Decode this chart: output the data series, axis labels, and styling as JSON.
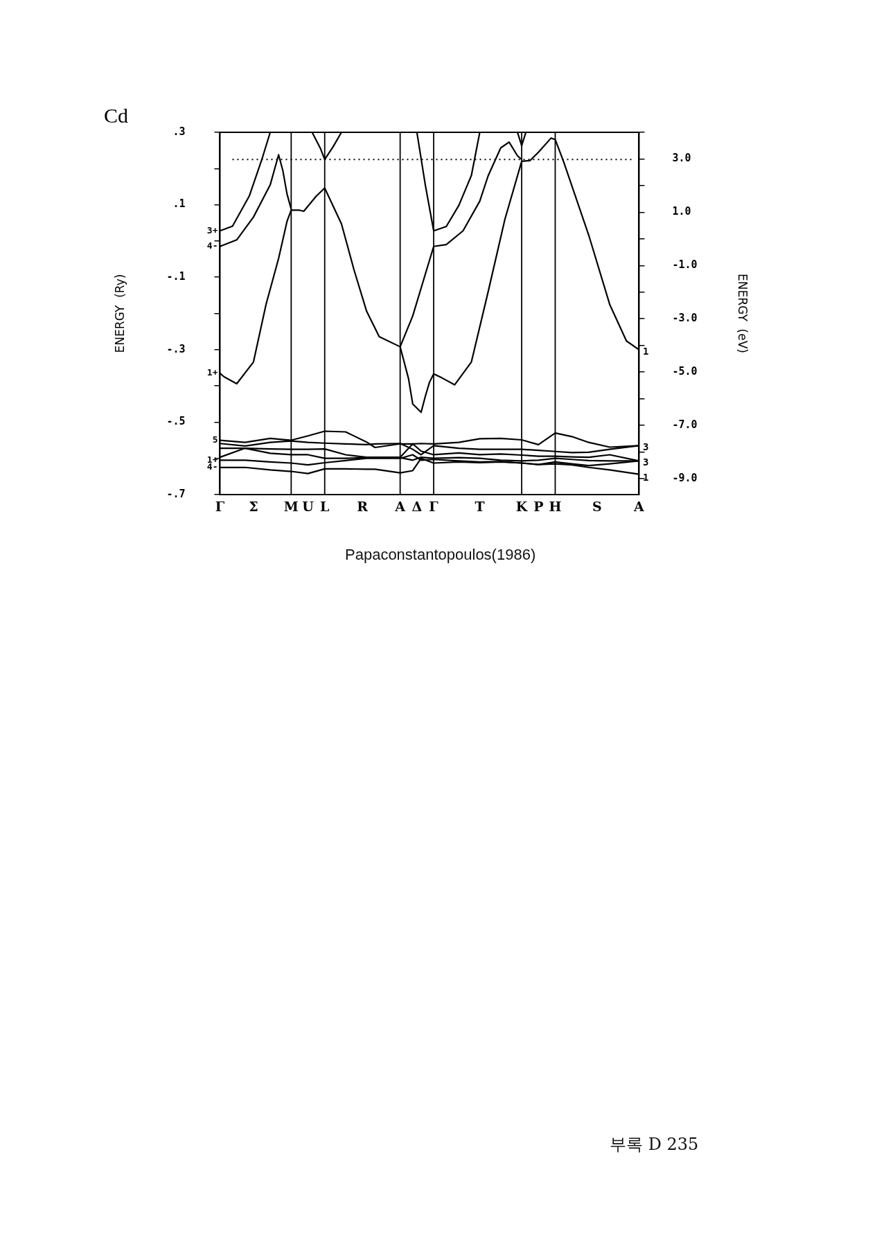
{
  "chart_data": {
    "type": "line",
    "title": "Cd",
    "ylabel": "ENERGY  (Ry)",
    "y2label": "ENERGY  (eV)",
    "categories": [
      "Γ",
      null,
      null,
      null,
      null,
      null,
      null,
      null,
      "Σ",
      null,
      null,
      null,
      null,
      null,
      null,
      null,
      null,
      "M",
      null,
      null,
      null,
      "U",
      null,
      null,
      null,
      "L",
      null,
      null,
      null,
      null,
      null,
      null,
      null,
      null,
      "R",
      null,
      null,
      null,
      null,
      null,
      null,
      null,
      null,
      "A",
      null,
      null,
      null,
      "Δ",
      null,
      null,
      null,
      "Γ",
      null,
      null,
      null,
      null,
      null,
      null,
      null,
      null,
      null,
      null,
      "T",
      null,
      null,
      null,
      null,
      null,
      null,
      null,
      null,
      null,
      "K",
      null,
      null,
      null,
      "P",
      null,
      null,
      null,
      "H",
      null,
      null,
      null,
      null,
      null,
      null,
      null,
      null,
      null,
      "S",
      null,
      null,
      null,
      null,
      null,
      null,
      null,
      null,
      null,
      "A"
    ],
    "ylim": [
      -0.7,
      0.3
    ],
    "yticks": [
      {
        "value": 0.3,
        "label": ".3"
      },
      {
        "value": 0.2,
        "label": null
      },
      {
        "value": 0.1,
        "label": ".1"
      },
      {
        "value": 0,
        "label": null
      },
      {
        "value": -0.1,
        "label": "-.1"
      },
      {
        "value": -0.2,
        "label": null
      },
      {
        "value": -0.3,
        "label": "-.3"
      },
      {
        "value": -0.4,
        "label": null
      },
      {
        "value": -0.5,
        "label": "-.5"
      },
      {
        "value": -0.6,
        "label": null
      },
      {
        "value": -0.7,
        "label": "-.7"
      }
    ],
    "y2lim": [
      -9.6,
      4.0
    ],
    "y2ticks": [
      {
        "value": 4,
        "label": null
      },
      {
        "value": 3,
        "label": "3.0"
      },
      {
        "value": 2,
        "label": null
      },
      {
        "value": 1,
        "label": "1.0"
      },
      {
        "value": 0,
        "label": null
      },
      {
        "value": -1,
        "label": "-1.0"
      },
      {
        "value": -2,
        "label": null
      },
      {
        "value": -3,
        "label": "-3.0"
      },
      {
        "value": -4,
        "label": null
      },
      {
        "value": -5,
        "label": "-5.0"
      },
      {
        "value": -6,
        "label": null
      },
      {
        "value": -7,
        "label": "-7.0"
      },
      {
        "value": -8,
        "label": null
      },
      {
        "value": -9,
        "label": "-9.0"
      }
    ],
    "grid": false,
    "legend": false,
    "marker": "none",
    "line_style": "solid",
    "series": [
      {
        "color": "#000000",
        "values": [
          -0.365,
          -0.375,
          null,
          null,
          -0.394,
          null,
          null,
          null,
          -0.334,
          null,
          null,
          -0.175,
          null,
          null,
          -0.048,
          null,
          0.054,
          0.085,
          null,
          0.085,
          0.082,
          null,
          null,
          0.124,
          null,
          0.146,
          null,
          null,
          null,
          0.047,
          null,
          null,
          -0.08,
          null,
          null,
          -0.194,
          null,
          null,
          -0.264,
          null,
          null,
          null,
          null,
          -0.292,
          null,
          null,
          null,
          null,
          null,
          null,
          null,
          null,
          null,
          null,
          null,
          null,
          null,
          null,
          null,
          null,
          null,
          null,
          null,
          null,
          null,
          null,
          null,
          null,
          null,
          null,
          null,
          null,
          null,
          null,
          null,
          null,
          null,
          null,
          null,
          null,
          null,
          null,
          null,
          null,
          null,
          null,
          null,
          null,
          null,
          null,
          null,
          null,
          null,
          null,
          null,
          null,
          null,
          null,
          null,
          null,
          null
        ]
      },
      {
        "color": "#000000",
        "values": [
          -0.015,
          null,
          null,
          null,
          0.003,
          null,
          null,
          null,
          0.066,
          null,
          null,
          null,
          0.155,
          null,
          0.238,
          0.195,
          0.13,
          0.088,
          null,
          null,
          null,
          null,
          null,
          null,
          null,
          null,
          null,
          null,
          null,
          null,
          null,
          null,
          null,
          null,
          null,
          null,
          null,
          null,
          null,
          null,
          null,
          null,
          null,
          null,
          null,
          null,
          null,
          null,
          null,
          null,
          null,
          null,
          null,
          null,
          null,
          null,
          null,
          null,
          null,
          null,
          null,
          null,
          null,
          null,
          null,
          null,
          null,
          null,
          null,
          null,
          null,
          null,
          null,
          null,
          null,
          null,
          null,
          null,
          null,
          null,
          null,
          null,
          null,
          null,
          null,
          null,
          null,
          null,
          null,
          null,
          null,
          null,
          null,
          null,
          null,
          null,
          null,
          null,
          null,
          null,
          null
        ]
      },
      {
        "color": "#000000",
        "values": [
          0.028,
          null,
          null,
          0.041,
          null,
          null,
          null,
          0.124,
          null,
          null,
          0.225,
          null,
          0.3,
          null,
          null,
          null,
          null,
          null,
          null,
          null,
          null,
          null,
          null,
          null,
          null,
          null,
          null,
          null,
          null,
          null,
          null,
          null,
          null,
          null,
          null,
          null,
          null,
          null,
          null,
          null,
          null,
          null,
          null,
          null,
          null,
          null,
          null,
          null,
          null,
          null,
          null,
          null,
          null,
          null,
          null,
          null,
          null,
          null,
          null,
          null,
          null,
          null,
          null,
          null,
          null,
          null,
          null,
          null,
          null,
          null,
          null,
          null,
          null,
          null,
          null,
          null,
          null,
          null,
          null,
          null,
          null,
          null,
          null,
          null,
          null,
          null,
          null,
          null,
          null,
          null,
          null,
          null,
          null,
          null,
          null,
          null,
          null,
          null,
          null,
          null,
          null
        ]
      },
      {
        "color": "#000000",
        "values": [
          null,
          null,
          null,
          null,
          null,
          null,
          null,
          null,
          null,
          null,
          null,
          null,
          null,
          null,
          null,
          null,
          null,
          null,
          null,
          null,
          null,
          null,
          0.3,
          null,
          0.255,
          0.225,
          null,
          0.26,
          null,
          0.3,
          null,
          null,
          null,
          null,
          null,
          null,
          null,
          null,
          null,
          null,
          null,
          null,
          null,
          null,
          null,
          null,
          null,
          null,
          null,
          null,
          null,
          null,
          null,
          null,
          null,
          null,
          null,
          null,
          null,
          null,
          null,
          null,
          null,
          null,
          null,
          null,
          null,
          null,
          null,
          null,
          null,
          null,
          null,
          null,
          null,
          null,
          null,
          null,
          null,
          null,
          null,
          null,
          null,
          null,
          null,
          null,
          null,
          null,
          null,
          null,
          null,
          null,
          null,
          null,
          null,
          null,
          null,
          null,
          null,
          null,
          null
        ]
      },
      {
        "color": "#000000",
        "values": [
          null,
          null,
          null,
          null,
          null,
          null,
          null,
          null,
          null,
          null,
          null,
          null,
          null,
          null,
          null,
          null,
          null,
          null,
          null,
          null,
          null,
          null,
          null,
          null,
          null,
          null,
          null,
          null,
          null,
          null,
          null,
          null,
          null,
          null,
          null,
          null,
          null,
          null,
          null,
          null,
          null,
          null,
          null,
          -0.292,
          null,
          null,
          -0.207,
          null,
          null,
          null,
          null,
          -0.015,
          null,
          null,
          null,
          null,
          null,
          null,
          null,
          null,
          null,
          null,
          null,
          null,
          null,
          null,
          null,
          null,
          null,
          null,
          null,
          null,
          null,
          null,
          null,
          null,
          null,
          null,
          null,
          null,
          null,
          null,
          null,
          null,
          null,
          null,
          null,
          null,
          null,
          null,
          null,
          null,
          null,
          null,
          null,
          null,
          null,
          null,
          null,
          null,
          null
        ]
      },
      {
        "color": "#000000",
        "values": [
          null,
          null,
          null,
          null,
          null,
          null,
          null,
          null,
          null,
          null,
          null,
          null,
          null,
          null,
          null,
          null,
          null,
          null,
          null,
          null,
          null,
          null,
          null,
          null,
          null,
          null,
          null,
          null,
          null,
          null,
          null,
          null,
          null,
          null,
          null,
          null,
          null,
          null,
          null,
          null,
          null,
          null,
          null,
          -0.292,
          null,
          -0.38,
          -0.45,
          null,
          -0.473,
          -0.429,
          -0.39,
          -0.367,
          null,
          -0.378,
          null,
          null,
          -0.397,
          null,
          null,
          null,
          -0.334,
          null,
          null,
          null,
          -0.14,
          null,
          null,
          null,
          0.06,
          null,
          null,
          null,
          0.22,
          null,
          0.222,
          null,
          0.245,
          null,
          null,
          0.284,
          0.28,
          null,
          0.219,
          null,
          null,
          null,
          null,
          null,
          0.016,
          null,
          null,
          null,
          null,
          -0.175,
          null,
          null,
          null,
          -0.276,
          null,
          null,
          -0.3
        ]
      },
      {
        "color": "#000000",
        "values": [
          null,
          null,
          null,
          null,
          null,
          null,
          null,
          null,
          null,
          null,
          null,
          null,
          null,
          null,
          null,
          null,
          null,
          null,
          null,
          null,
          null,
          null,
          null,
          null,
          null,
          null,
          null,
          null,
          null,
          null,
          null,
          null,
          null,
          null,
          null,
          null,
          null,
          null,
          null,
          null,
          null,
          null,
          null,
          null,
          null,
          null,
          null,
          0.3,
          null,
          0.155,
          null,
          0.028,
          null,
          null,
          0.04,
          null,
          null,
          0.098,
          null,
          null,
          0.181,
          null,
          0.3,
          null,
          null,
          null,
          null,
          null,
          null,
          null,
          null,
          null,
          null,
          null,
          null,
          null,
          null,
          null,
          null,
          null,
          null,
          null,
          null,
          null,
          null,
          null,
          null,
          null,
          null,
          null,
          null,
          null,
          null,
          null,
          null,
          null,
          null,
          null,
          null,
          null,
          null
        ]
      },
      {
        "color": "#000000",
        "values": [
          null,
          null,
          null,
          null,
          null,
          null,
          null,
          null,
          null,
          null,
          null,
          null,
          null,
          null,
          null,
          null,
          null,
          null,
          null,
          null,
          null,
          null,
          null,
          null,
          null,
          null,
          null,
          null,
          null,
          null,
          null,
          null,
          null,
          null,
          null,
          null,
          null,
          null,
          null,
          null,
          null,
          null,
          null,
          null,
          null,
          null,
          null,
          null,
          null,
          null,
          null,
          -0.015,
          null,
          null,
          -0.01,
          null,
          null,
          null,
          0.028,
          null,
          null,
          null,
          0.11,
          null,
          0.18,
          null,
          null,
          0.257,
          null,
          0.273,
          null,
          0.235,
          0.225,
          null,
          null,
          null,
          null,
          null,
          null,
          null,
          null,
          null,
          null,
          null,
          null,
          null,
          null,
          null,
          null,
          null,
          null,
          null,
          null,
          null,
          null,
          null,
          null,
          null,
          null,
          null,
          null
        ]
      },
      {
        "color": "#000000",
        "values": [
          null,
          null,
          null,
          null,
          null,
          null,
          null,
          null,
          null,
          null,
          null,
          null,
          null,
          null,
          null,
          null,
          null,
          null,
          null,
          null,
          null,
          null,
          null,
          null,
          null,
          null,
          null,
          null,
          null,
          null,
          null,
          null,
          null,
          null,
          null,
          null,
          null,
          null,
          null,
          null,
          null,
          null,
          null,
          null,
          null,
          null,
          null,
          null,
          null,
          null,
          null,
          null,
          null,
          null,
          null,
          null,
          null,
          null,
          null,
          null,
          null,
          null,
          null,
          null,
          null,
          null,
          null,
          null,
          null,
          null,
          null,
          0.3,
          0.263,
          0.3,
          null,
          null,
          null,
          null,
          null,
          null,
          null,
          null,
          null,
          null,
          null,
          null,
          null,
          null,
          null,
          null,
          null,
          null,
          null,
          null,
          null,
          null,
          null,
          null,
          null,
          null,
          null
        ]
      },
      {
        "color": "#000000",
        "values": [
          -0.55,
          null,
          null,
          null,
          null,
          null,
          -0.556,
          null,
          null,
          null,
          null,
          null,
          -0.545,
          null,
          null,
          null,
          null,
          -0.55,
          null,
          null,
          null,
          -0.538,
          null,
          null,
          null,
          -0.525,
          null,
          null,
          null,
          null,
          -0.527,
          null,
          null,
          null,
          null,
          -0.555,
          null,
          -0.57,
          null,
          null,
          null,
          null,
          null,
          -0.56,
          null,
          null,
          -0.56,
          null,
          -0.559,
          null,
          null,
          -0.56,
          null,
          null,
          null,
          null,
          null,
          -0.556,
          null,
          null,
          null,
          null,
          -0.546,
          null,
          null,
          null,
          null,
          -0.545,
          null,
          null,
          null,
          null,
          -0.549,
          null,
          null,
          null,
          -0.562,
          null,
          null,
          null,
          -0.53,
          null,
          null,
          null,
          -0.54,
          null,
          null,
          null,
          -0.556,
          null,
          null,
          null,
          null,
          -0.569,
          null,
          null,
          null,
          null,
          null,
          null,
          -0.565
        ]
      },
      {
        "color": "#000000",
        "values": [
          -0.559,
          null,
          null,
          null,
          null,
          null,
          -0.566,
          null,
          null,
          null,
          null,
          null,
          -0.556,
          null,
          null,
          null,
          null,
          -0.552,
          null,
          null,
          null,
          -0.556,
          null,
          null,
          null,
          -0.558,
          null,
          null,
          null,
          null,
          -0.56,
          null,
          null,
          null,
          null,
          -0.562,
          null,
          -0.56,
          null,
          null,
          null,
          null,
          null,
          -0.559,
          null,
          null,
          -0.575,
          null,
          -0.59,
          null,
          null,
          -0.565,
          null,
          null,
          null,
          null,
          null,
          -0.572,
          null,
          null,
          null,
          null,
          -0.575,
          null,
          null,
          null,
          null,
          -0.575,
          null,
          null,
          null,
          null,
          -0.575,
          null,
          null,
          null,
          -0.578,
          null,
          null,
          null,
          -0.581,
          null,
          null,
          null,
          -0.584,
          null,
          null,
          null,
          -0.583,
          null,
          null,
          null,
          null,
          -0.575,
          null,
          null,
          null,
          null,
          null,
          null,
          -0.565
        ]
      },
      {
        "color": "#000000",
        "values": [
          -0.572,
          null,
          null,
          null,
          null,
          null,
          -0.572,
          null,
          null,
          null,
          null,
          null,
          -0.574,
          null,
          null,
          null,
          null,
          -0.575,
          null,
          null,
          null,
          -0.575,
          null,
          null,
          null,
          -0.574,
          null,
          null,
          null,
          null,
          -0.59,
          null,
          null,
          null,
          null,
          -0.597,
          null,
          -0.597,
          null,
          null,
          null,
          null,
          null,
          -0.597,
          null,
          null,
          -0.56,
          null,
          -0.58,
          null,
          null,
          -0.59,
          null,
          null,
          null,
          null,
          null,
          -0.585,
          null,
          null,
          null,
          null,
          -0.59,
          null,
          null,
          null,
          null,
          -0.588,
          null,
          null,
          null,
          null,
          -0.591,
          null,
          null,
          null,
          -0.594,
          null,
          null,
          null,
          -0.594,
          null,
          null,
          null,
          -0.596,
          null,
          null,
          null,
          -0.597,
          null,
          null,
          null,
          null,
          -0.59,
          null,
          null,
          null,
          null,
          null,
          null,
          -0.607
        ]
      },
      {
        "color": "#000000",
        "values": [
          -0.597,
          null,
          null,
          null,
          null,
          null,
          -0.572,
          null,
          null,
          null,
          null,
          null,
          -0.586,
          null,
          null,
          null,
          null,
          -0.59,
          null,
          null,
          null,
          -0.59,
          null,
          null,
          null,
          -0.6,
          null,
          null,
          null,
          null,
          -0.6,
          null,
          null,
          null,
          null,
          -0.598,
          null,
          -0.598,
          null,
          null,
          null,
          null,
          null,
          -0.598,
          null,
          null,
          -0.605,
          null,
          -0.597,
          null,
          null,
          -0.6,
          null,
          null,
          null,
          null,
          null,
          -0.598,
          null,
          null,
          null,
          null,
          -0.6,
          null,
          null,
          null,
          null,
          -0.605,
          null,
          null,
          null,
          null,
          -0.607,
          null,
          null,
          null,
          -0.605,
          null,
          null,
          null,
          -0.6,
          null,
          null,
          null,
          -0.603,
          null,
          null,
          null,
          -0.606,
          null,
          null,
          null,
          null,
          -0.607,
          null,
          null,
          null,
          null,
          null,
          null,
          -0.607
        ]
      },
      {
        "color": "#000000",
        "values": [
          -0.605,
          null,
          null,
          null,
          null,
          null,
          -0.605,
          null,
          null,
          null,
          null,
          null,
          -0.61,
          null,
          null,
          null,
          null,
          -0.613,
          null,
          null,
          null,
          -0.618,
          null,
          null,
          null,
          -0.612,
          null,
          null,
          null,
          null,
          -0.606,
          null,
          null,
          null,
          null,
          -0.6,
          null,
          -0.6,
          null,
          null,
          null,
          null,
          null,
          -0.6,
          null,
          null,
          -0.59,
          null,
          -0.605,
          null,
          null,
          -0.603,
          null,
          null,
          null,
          null,
          null,
          -0.607,
          null,
          null,
          null,
          null,
          -0.61,
          null,
          null,
          null,
          null,
          -0.609,
          null,
          null,
          null,
          null,
          -0.613,
          null,
          null,
          null,
          -0.617,
          null,
          null,
          null,
          -0.61,
          null,
          null,
          null,
          -0.615,
          null,
          null,
          null,
          -0.62,
          null,
          null,
          null,
          null,
          -0.615,
          null,
          null,
          null,
          null,
          null,
          null,
          -0.607
        ]
      },
      {
        "color": "#000000",
        "values": [
          -0.625,
          null,
          null,
          null,
          null,
          null,
          -0.625,
          null,
          null,
          null,
          null,
          null,
          -0.632,
          null,
          null,
          null,
          null,
          -0.636,
          null,
          null,
          null,
          -0.642,
          null,
          null,
          null,
          -0.629,
          null,
          null,
          null,
          null,
          -0.629,
          null,
          null,
          null,
          null,
          -0.63,
          null,
          -0.63,
          null,
          null,
          null,
          null,
          null,
          -0.64,
          null,
          null,
          -0.634,
          null,
          -0.6,
          null,
          null,
          -0.613,
          null,
          null,
          null,
          null,
          null,
          -0.61,
          null,
          null,
          null,
          null,
          -0.612,
          null,
          null,
          null,
          null,
          -0.61,
          null,
          null,
          null,
          null,
          -0.613,
          null,
          null,
          null,
          -0.617,
          null,
          null,
          null,
          -0.615,
          null,
          null,
          null,
          -0.618,
          null,
          null,
          null,
          -0.625,
          null,
          null,
          null,
          null,
          -0.632,
          null,
          null,
          null,
          null,
          null,
          null,
          -0.644
        ]
      }
    ],
    "ref_lines": [
      {
        "axis": "y",
        "value": 0.225,
        "color": "#000000",
        "line_style": "dotted"
      }
    ],
    "annotations": [
      {
        "text": "3+",
        "x": "Γ",
        "y": 0.028
      },
      {
        "text": "4-",
        "x": "Γ",
        "y": -0.015
      },
      {
        "text": "1+",
        "x": "Γ",
        "y": -0.365
      },
      "1",
      {
        "text": "5",
        "x": "Γ",
        "y": -0.55
      },
      {
        "text": "1+",
        "x": "Γ",
        "y": -0.605
      },
      {
        "text": "4-",
        "x": "Γ",
        "y": -0.625
      },
      "3",
      "3",
      "1",
      "Papaconstantopoulos(1986)",
      "부록 D 235"
    ]
  }
}
